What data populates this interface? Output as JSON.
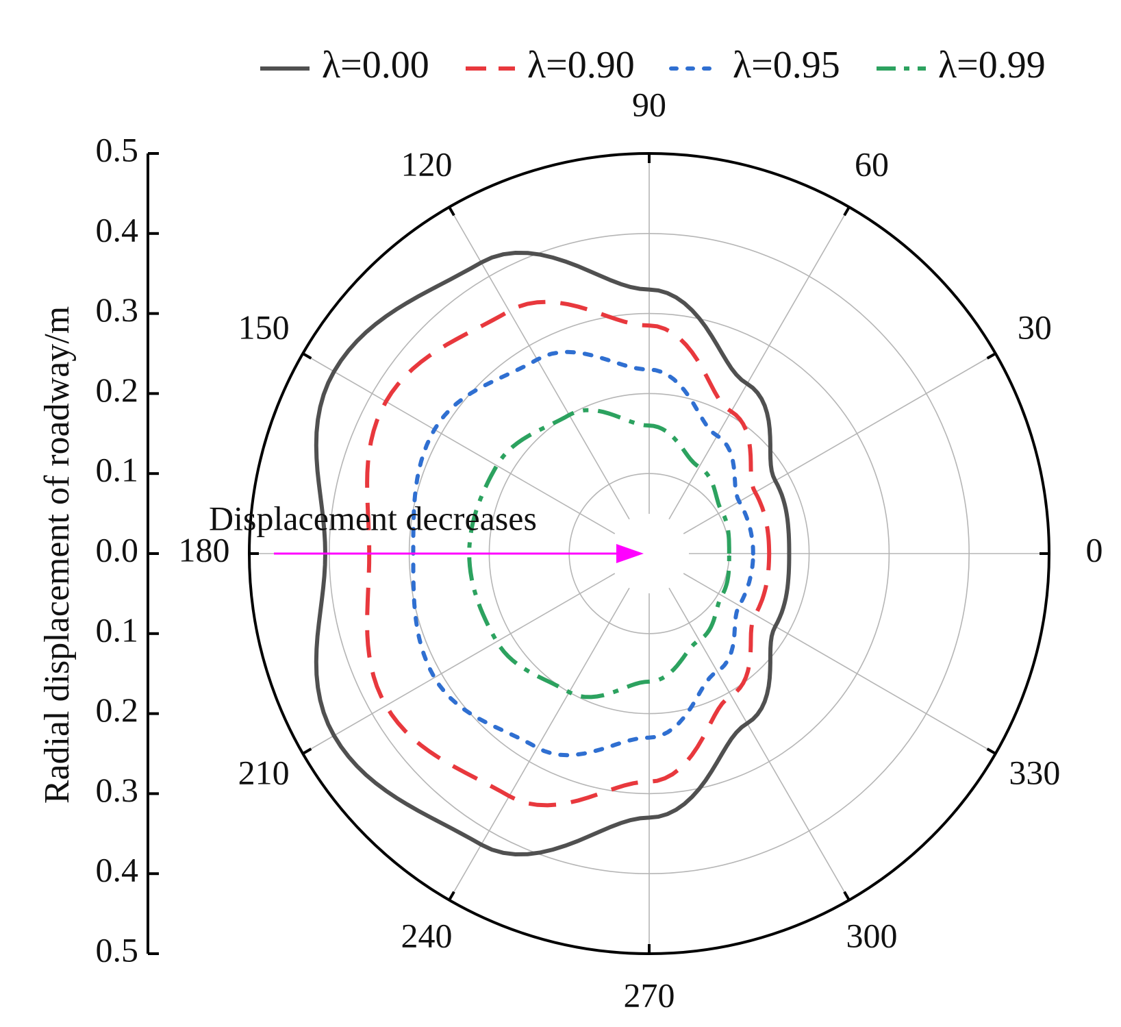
{
  "chart_data": {
    "type": "polar-line",
    "title": "",
    "ylabel": "Radial displacement of roadway/m",
    "radial_range": [
      0,
      0.5
    ],
    "radial_ticks": [
      0.5,
      0.4,
      0.3,
      0.2,
      0.1,
      0.0,
      0.1,
      0.2,
      0.3,
      0.4,
      0.5
    ],
    "radial_tick_labels": [
      "0.5",
      "0.4",
      "0.3",
      "0.2",
      "0.1",
      "0.0",
      "0.1",
      "0.2",
      "0.3",
      "0.4",
      "0.5"
    ],
    "angle_ticks": [
      0,
      30,
      60,
      90,
      120,
      150,
      180,
      210,
      240,
      270,
      300,
      330
    ],
    "angle_tick_labels": [
      "0",
      "30",
      "60",
      "90",
      "120",
      "150",
      "180",
      "210",
      "240",
      "270",
      "300",
      "330"
    ],
    "grid": true,
    "legend_position": "top",
    "annotation": {
      "text": "Displacement decreases",
      "color": "#ff00ff"
    },
    "series": [
      {
        "name": "λ=0.00",
        "color": "#505050",
        "dash": "solid",
        "angles": [
          0,
          30,
          60,
          90,
          120,
          150,
          180,
          210,
          240,
          270,
          300,
          330,
          360
        ],
        "values": [
          0.175,
          0.182,
          0.245,
          0.33,
          0.42,
          0.455,
          0.405,
          0.455,
          0.42,
          0.33,
          0.245,
          0.182,
          0.175
        ]
      },
      {
        "name": "λ=0.90",
        "color": "#e8383d",
        "dash": "dashed",
        "angles": [
          0,
          30,
          60,
          90,
          120,
          150,
          180,
          210,
          240,
          270,
          300,
          330,
          360
        ],
        "values": [
          0.15,
          0.153,
          0.205,
          0.285,
          0.35,
          0.38,
          0.35,
          0.38,
          0.35,
          0.285,
          0.205,
          0.153,
          0.15
        ]
      },
      {
        "name": "λ=0.95",
        "color": "#2f6fd1",
        "dash": "dotted",
        "angles": [
          0,
          30,
          60,
          90,
          120,
          150,
          180,
          210,
          240,
          270,
          300,
          330,
          360
        ],
        "values": [
          0.13,
          0.13,
          0.17,
          0.23,
          0.28,
          0.31,
          0.295,
          0.31,
          0.28,
          0.23,
          0.17,
          0.13,
          0.13
        ]
      },
      {
        "name": "λ=0.99",
        "color": "#2ca25f",
        "dash": "dash-dot",
        "angles": [
          0,
          30,
          60,
          90,
          120,
          150,
          180,
          210,
          240,
          270,
          300,
          330,
          360
        ],
        "values": [
          0.1,
          0.105,
          0.125,
          0.16,
          0.2,
          0.22,
          0.225,
          0.22,
          0.2,
          0.16,
          0.125,
          0.105,
          0.1
        ]
      }
    ]
  }
}
